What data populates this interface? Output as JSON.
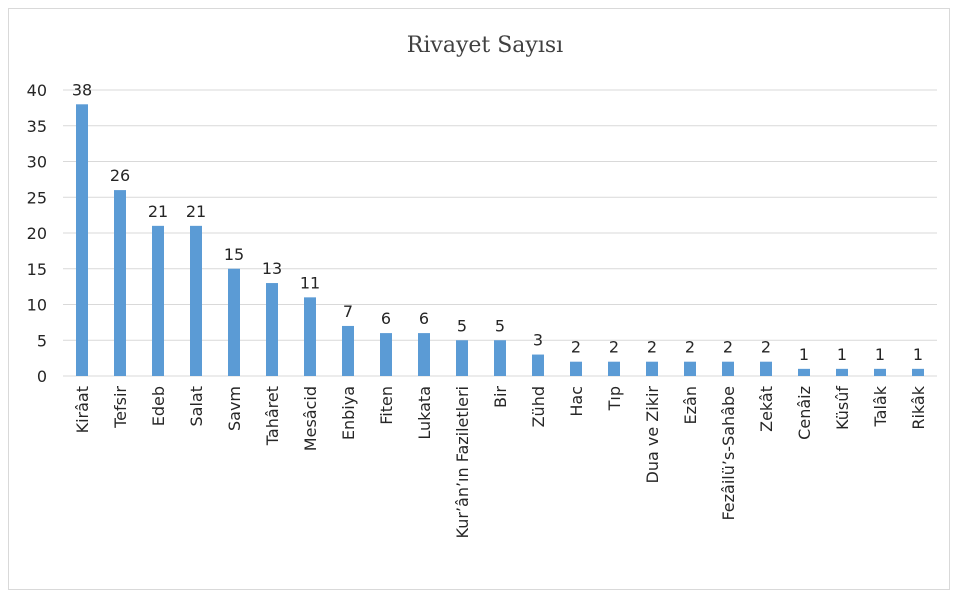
{
  "chart_data": {
    "type": "bar",
    "title": "Rivayet Sayısı",
    "xlabel": "",
    "ylabel": "",
    "ylim": [
      0,
      40
    ],
    "yticks": [
      0,
      5,
      10,
      15,
      20,
      25,
      30,
      35,
      40
    ],
    "grid": true,
    "legend": "none",
    "bar_color": "#5b9bd5",
    "categories": [
      "Kirâat",
      "Tefsir",
      "Edeb",
      "Salat",
      "Savm",
      "Tahâret",
      "Mesâcid",
      "Enbiya",
      "Fiten",
      "Lukata",
      "Kur’ân’ın Faziletleri",
      "Bir",
      "Zühd",
      "Hac",
      "Tıp",
      "Dua ve Zikir",
      "Ezân",
      "Fezâilü’s-Sahâbe",
      "Zekât",
      "Cenâiz",
      "Küsûf",
      "Talâk",
      "Rikâk"
    ],
    "values": [
      38,
      26,
      21,
      21,
      15,
      13,
      11,
      7,
      6,
      6,
      5,
      5,
      3,
      2,
      2,
      2,
      2,
      2,
      2,
      1,
      1,
      1,
      1
    ]
  }
}
